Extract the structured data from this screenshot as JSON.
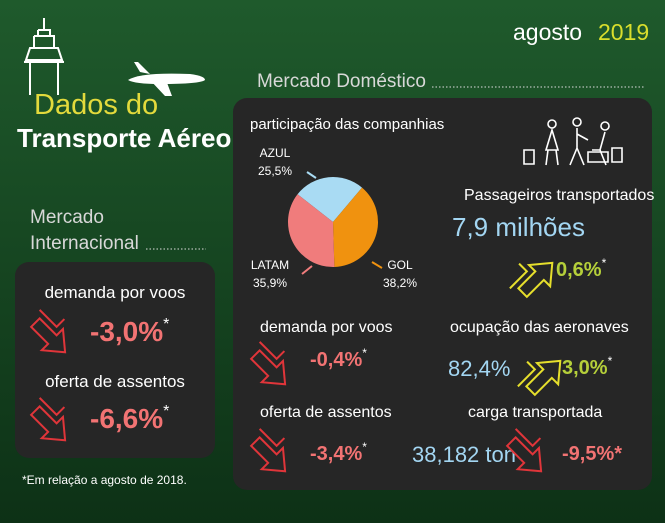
{
  "header": {
    "month": "agosto",
    "year": "2019",
    "title_line1": "Dados do",
    "title_line2": "Transporte Aéreo"
  },
  "international": {
    "title_line1": "Mercado",
    "title_line2": "Internacional",
    "demand": {
      "label": "demanda por voos",
      "change": "-3,0%",
      "mark": "*"
    },
    "supply": {
      "label": "oferta de assentos",
      "change": "-6,6%",
      "mark": "*"
    }
  },
  "footnote": "*Em relação a agosto de 2018.",
  "domestic": {
    "title": "Mercado Doméstico",
    "share_title": "participação das companhias",
    "passengers": {
      "label": "Passageiros transportados",
      "value": "7,9 milhões",
      "change": "0,6%",
      "mark": "*"
    },
    "demand": {
      "label": "demanda por voos",
      "change": "-0,4%",
      "mark": "*"
    },
    "supply": {
      "label": "oferta de assentos",
      "change": "-3,4%",
      "mark": "*"
    },
    "occupancy": {
      "label": "ocupação das aeronaves",
      "value": "82,4%",
      "change": "3,0%",
      "mark": "*"
    },
    "cargo": {
      "label": "carga transportada",
      "value": "38,182 ton",
      "change": "-9,5%*"
    }
  },
  "chart_data": {
    "type": "pie",
    "categories": [
      "AZUL",
      "GOL",
      "LATAM"
    ],
    "values": [
      25.5,
      38.2,
      35.9
    ],
    "value_labels": [
      "25,5%",
      "38,2%",
      "35,9%"
    ],
    "colors": [
      "#a9dbf3",
      "#f0920f",
      "#f07c7c"
    ]
  }
}
